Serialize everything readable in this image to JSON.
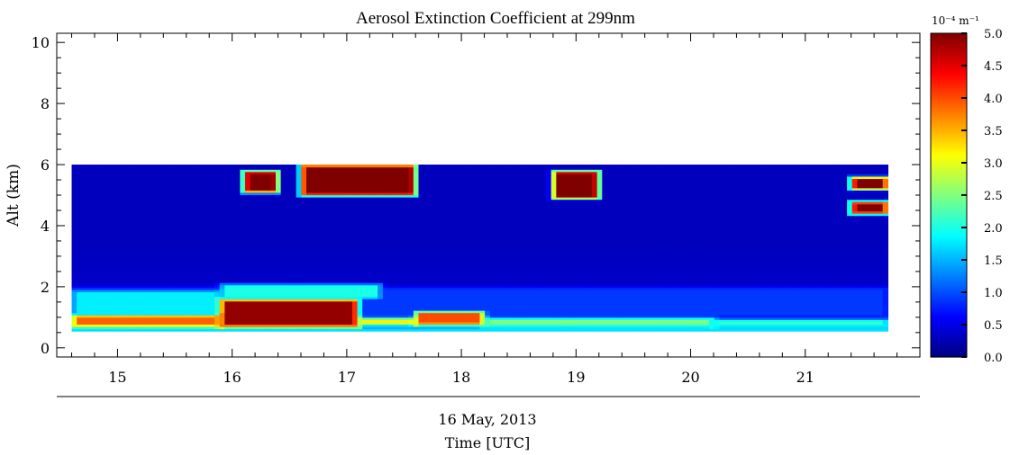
{
  "chart_data": {
    "type": "heatmap",
    "title": "Aerosol Extinction Coefficient at 299nm",
    "ylabel": "Alt (km)",
    "xlabel_date": "16 May, 2013",
    "xlabel": "Time [UTC]",
    "x_range": [
      14.47,
      22.0
    ],
    "y_range": [
      -0.3,
      10.3
    ],
    "x_ticks": [
      15,
      16,
      17,
      18,
      19,
      20,
      21
    ],
    "x_tick_labels": [
      "15",
      "16",
      "17",
      "18",
      "19",
      "20",
      "21"
    ],
    "y_ticks": [
      0,
      2,
      4,
      6,
      8,
      10
    ],
    "y_tick_labels": [
      "0",
      "2",
      "4",
      "6",
      "8",
      "10"
    ],
    "data_extent": {
      "x": [
        14.6,
        21.72
      ],
      "y": [
        0.55,
        6.0
      ]
    },
    "colorbar": {
      "unit": "10⁻⁴ m⁻¹",
      "range": [
        0.0,
        5.0
      ],
      "ticks": [
        0.0,
        0.5,
        1.0,
        1.5,
        2.0,
        2.5,
        3.0,
        3.5,
        4.0,
        4.5,
        5.0
      ],
      "tick_labels": [
        "0.0",
        "0.5",
        "1.0",
        "1.5",
        "2.0",
        "2.5",
        "3.0",
        "3.5",
        "4.0",
        "4.5",
        "5.0"
      ],
      "colormap": "jet"
    },
    "background_value": 0.3,
    "features": [
      {
        "t": [
          14.6,
          21.72
        ],
        "alt": [
          0.55,
          0.68
        ],
        "value": 2.2
      },
      {
        "t": [
          14.6,
          15.9
        ],
        "alt": [
          0.7,
          1.1
        ],
        "value": 3.9
      },
      {
        "t": [
          14.6,
          15.9
        ],
        "alt": [
          1.1,
          1.9
        ],
        "value": 1.8
      },
      {
        "t": [
          15.9,
          17.1
        ],
        "alt": [
          0.7,
          1.6
        ],
        "value": 4.9
      },
      {
        "t": [
          15.9,
          17.3
        ],
        "alt": [
          1.6,
          2.1
        ],
        "value": 2.0
      },
      {
        "t": [
          17.1,
          17.6
        ],
        "alt": [
          0.75,
          1.0
        ],
        "value": 3.2
      },
      {
        "t": [
          17.6,
          18.2
        ],
        "alt": [
          0.75,
          1.2
        ],
        "value": 4.0
      },
      {
        "t": [
          18.2,
          20.2
        ],
        "alt": [
          0.7,
          1.0
        ],
        "value": 2.5
      },
      {
        "t": [
          20.2,
          21.72
        ],
        "alt": [
          0.7,
          0.95
        ],
        "value": 2.2
      },
      {
        "t": [
          14.6,
          21.72
        ],
        "alt": [
          1.0,
          2.0
        ],
        "value": 0.9
      },
      {
        "t": [
          16.1,
          16.4
        ],
        "alt": [
          5.1,
          5.8
        ],
        "value": 5.0
      },
      {
        "t": [
          16.6,
          17.6
        ],
        "alt": [
          5.0,
          6.0
        ],
        "value": 5.0
      },
      {
        "t": [
          18.8,
          19.2
        ],
        "alt": [
          4.9,
          5.8
        ],
        "value": 5.0
      },
      {
        "t": [
          21.4,
          21.72
        ],
        "alt": [
          5.2,
          5.6
        ],
        "value": 5.0
      },
      {
        "t": [
          21.4,
          21.72
        ],
        "alt": [
          4.4,
          4.8
        ],
        "value": 5.0
      }
    ]
  }
}
